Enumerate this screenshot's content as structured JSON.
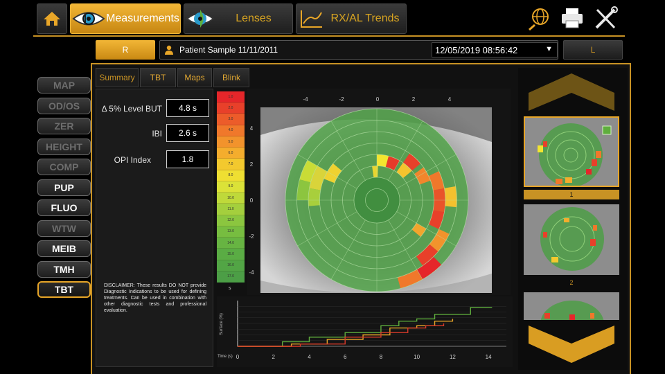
{
  "header": {
    "tabs": [
      {
        "label": "Measurements",
        "active": true
      },
      {
        "label": "Lenses",
        "active": false
      },
      {
        "label": "RX/AL Trends",
        "active": false
      }
    ],
    "accent_color": "#c89224"
  },
  "patient": {
    "right_eye_label": "R",
    "left_eye_label": "L",
    "name": "Patient Sample 11/11/2011",
    "exam_datetime": "12/05/2019 08:56:42"
  },
  "sidebar": {
    "items": [
      {
        "label": "MAP",
        "state": "disabled"
      },
      {
        "label": "OD/OS",
        "state": "disabled"
      },
      {
        "label": "ZER",
        "state": "disabled"
      },
      {
        "label": "HEIGHT",
        "state": "disabled"
      },
      {
        "label": "COMP",
        "state": "disabled"
      },
      {
        "label": "PUP",
        "state": "enabled"
      },
      {
        "label": "FLUO",
        "state": "enabled"
      },
      {
        "label": "WTW",
        "state": "disabled"
      },
      {
        "label": "MEIB",
        "state": "enabled"
      },
      {
        "label": "TMH",
        "state": "enabled"
      },
      {
        "label": "TBT",
        "state": "selected"
      }
    ]
  },
  "subtabs": [
    {
      "label": "Summary",
      "active": true
    },
    {
      "label": "TBT",
      "active": false
    },
    {
      "label": "Maps",
      "active": false
    },
    {
      "label": "Blink",
      "active": false
    }
  ],
  "summary": {
    "fields": [
      {
        "label": "Δ 5% Level BUT",
        "value": "4.8 s"
      },
      {
        "label": "IBI",
        "value": "2.6 s"
      },
      {
        "label": "OPI Index",
        "value": "1.8"
      }
    ],
    "disclaimer": "DISCLAIMER: These results DO NOT provide Diagnostic Indications to be used for defining treatments. Can be used in combination with other diagnostic tests and professional evaluation."
  },
  "color_scale": {
    "labels": [
      "1.0",
      "2.0",
      "3.0",
      "4.0",
      "5.0",
      "6.0",
      "7.0",
      "8.0",
      "9.0",
      "10.0",
      "11.0",
      "12.0",
      "13.0",
      "14.0",
      "15.0",
      "16.0",
      "17.0"
    ],
    "bottom_label": "s",
    "colors": [
      "#e5262a",
      "#e8402a",
      "#ec5c2a",
      "#f0782b",
      "#f2932c",
      "#f4ad2d",
      "#f3c92e",
      "#efdf32",
      "#dbe238",
      "#bfd93a",
      "#a4cf3d",
      "#8bc63f",
      "#77bd40",
      "#67b442",
      "#5aac44",
      "#52a545",
      "#4c9e46"
    ]
  },
  "map": {
    "x_ticks": [
      "-4",
      "-2",
      "0",
      "2",
      "4"
    ],
    "y_ticks": [
      "4",
      "2",
      "0",
      "-2",
      "-4"
    ],
    "cells": [
      {
        "ring": 5,
        "a0": 150,
        "a1": 170,
        "color": "#d9d43a"
      },
      {
        "ring": 5,
        "a0": 170,
        "a1": 185,
        "color": "#a8cf3c"
      },
      {
        "ring": 4,
        "a0": 140,
        "a1": 158,
        "color": "#efd230"
      },
      {
        "ring": 6,
        "a0": 150,
        "a1": 165,
        "color": "#c9dc36"
      },
      {
        "ring": 6,
        "a0": 165,
        "a1": 180,
        "color": "#8cc53f"
      },
      {
        "ring": 3,
        "a0": 75,
        "a1": 90,
        "color": "#f3e52f"
      },
      {
        "ring": 2,
        "a0": 88,
        "a1": 98,
        "color": "#e8d531"
      },
      {
        "ring": 3,
        "a0": 60,
        "a1": 75,
        "color": "#e73a2a"
      },
      {
        "ring": 3,
        "a0": 40,
        "a1": 55,
        "color": "#f4c42e"
      },
      {
        "ring": 4,
        "a0": 40,
        "a1": 55,
        "color": "#e8402a"
      },
      {
        "ring": 4,
        "a0": 20,
        "a1": 35,
        "color": "#f2862c"
      },
      {
        "ring": 5,
        "a0": -10,
        "a1": 10,
        "color": "#e9532a"
      },
      {
        "ring": 5,
        "a0": 10,
        "a1": 25,
        "color": "#f0782b"
      },
      {
        "ring": 6,
        "a0": -5,
        "a1": 10,
        "color": "#f3c12e"
      },
      {
        "ring": 5,
        "a0": -25,
        "a1": -10,
        "color": "#e8402a"
      },
      {
        "ring": 6,
        "a0": -40,
        "a1": -25,
        "color": "#f2932c"
      },
      {
        "ring": 6,
        "a0": -55,
        "a1": -40,
        "color": "#e8402a"
      },
      {
        "ring": 7,
        "a0": -60,
        "a1": -45,
        "color": "#e5262a"
      },
      {
        "ring": 7,
        "a0": -75,
        "a1": -60,
        "color": "#f0782b"
      },
      {
        "ring": 4,
        "a0": -40,
        "a1": -30,
        "color": "#f2a52d"
      }
    ]
  },
  "tbt_chart": {
    "x_ticks": [
      "0",
      "2",
      "4",
      "6",
      "8",
      "10",
      "12",
      "14"
    ],
    "y_label": "Surface (%)",
    "x_label": "Time (s)",
    "series": [
      {
        "color": "#5fae3d",
        "points": [
          [
            0,
            0
          ],
          [
            2.5,
            0.1
          ],
          [
            4,
            0.2
          ],
          [
            6,
            0.3
          ],
          [
            8,
            0.45
          ],
          [
            9,
            0.55
          ],
          [
            10,
            0.6
          ],
          [
            11,
            0.7
          ],
          [
            13,
            0.85
          ],
          [
            14.2,
            0.85
          ]
        ]
      },
      {
        "color": "#e8a628",
        "points": [
          [
            0,
            0
          ],
          [
            3,
            0.05
          ],
          [
            5,
            0.15
          ],
          [
            7,
            0.25
          ],
          [
            8.5,
            0.4
          ],
          [
            10,
            0.45
          ],
          [
            11,
            0.55
          ],
          [
            12,
            0.6
          ]
        ]
      },
      {
        "color": "#d93a2a",
        "points": [
          [
            0,
            0
          ],
          [
            1.5,
            0
          ],
          [
            3.5,
            0.05
          ],
          [
            6,
            0.2
          ],
          [
            8,
            0.3
          ],
          [
            9.5,
            0.4
          ],
          [
            10.5,
            0.45
          ],
          [
            11.5,
            0.5
          ]
        ]
      }
    ]
  },
  "thumbnails": [
    {
      "label": "1",
      "selected": true
    },
    {
      "label": "2",
      "selected": false
    }
  ]
}
